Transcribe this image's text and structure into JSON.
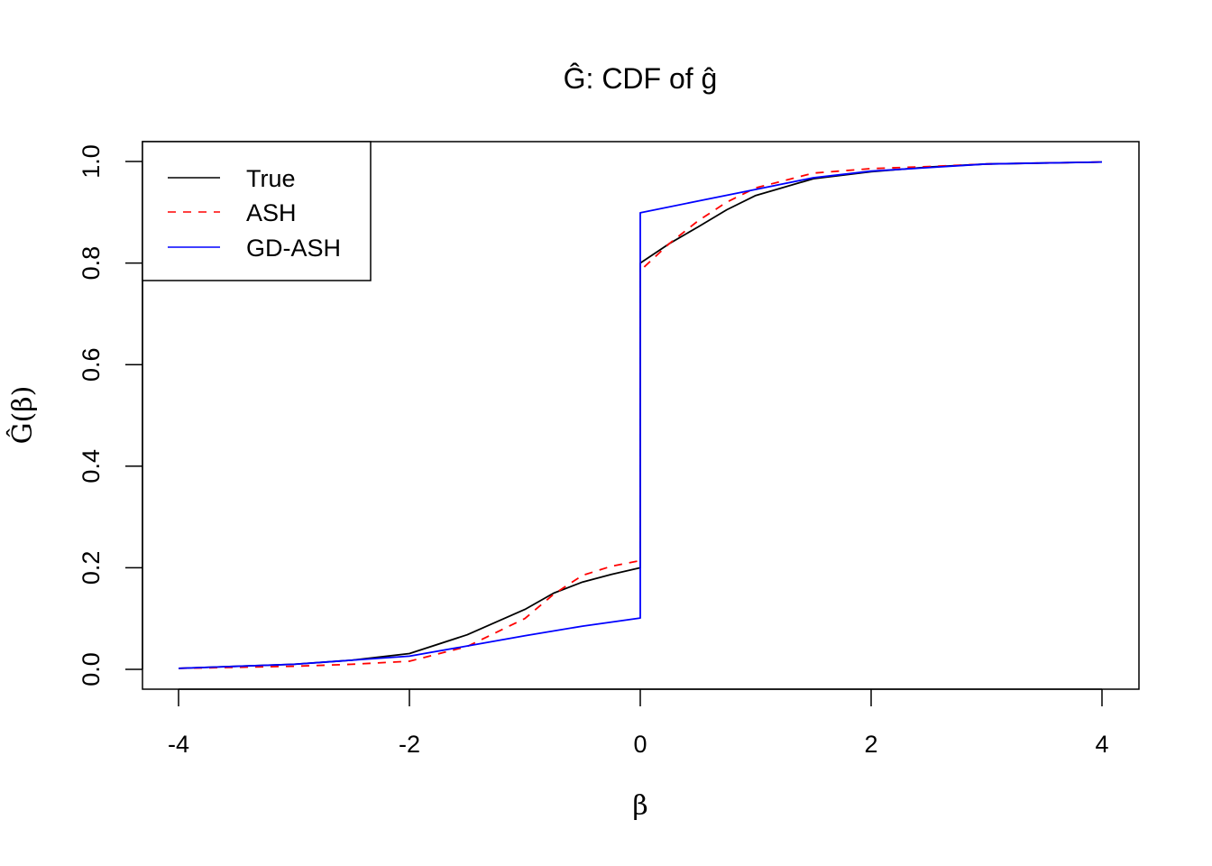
{
  "chart_data": {
    "type": "line",
    "title": "Ĝ: CDF of ĝ",
    "xlabel": "β",
    "ylabel": "Ĝ(β)",
    "xlim": [
      -4,
      4
    ],
    "ylim": [
      0,
      1
    ],
    "x_ticks": [
      "-4",
      "-2",
      "0",
      "2",
      "4"
    ],
    "y_ticks": [
      "0.0",
      "0.2",
      "0.4",
      "0.6",
      "0.8",
      "1.0"
    ],
    "grid": false,
    "legend_position": "top-left",
    "series": [
      {
        "name": "True",
        "color": "#000000",
        "dash": "solid",
        "x": [
          -4,
          -3,
          -2.5,
          -2,
          -1.5,
          -1,
          -0.75,
          -0.5,
          -0.25,
          0,
          0,
          0.25,
          0.5,
          0.75,
          1,
          1.5,
          2,
          2.5,
          3,
          4
        ],
        "y": [
          0.002,
          0.01,
          0.018,
          0.031,
          0.068,
          0.118,
          0.15,
          0.172,
          0.187,
          0.2,
          0.8,
          0.838,
          0.871,
          0.905,
          0.933,
          0.966,
          0.98,
          0.989,
          0.995,
          0.999
        ]
      },
      {
        "name": "ASH",
        "color": "#ff0000",
        "dash": "dashed",
        "x": [
          -4,
          -3,
          -2.5,
          -2,
          -1.5,
          -1,
          -0.75,
          -0.5,
          -0.25,
          0,
          0,
          0.25,
          0.5,
          0.75,
          1,
          1.5,
          2,
          2.5,
          3,
          4
        ],
        "y": [
          0.002,
          0.006,
          0.01,
          0.016,
          0.045,
          0.1,
          0.148,
          0.185,
          0.203,
          0.214,
          0.785,
          0.838,
          0.883,
          0.92,
          0.948,
          0.977,
          0.986,
          0.99,
          0.995,
          0.999
        ]
      },
      {
        "name": "GD-ASH",
        "color": "#0000ff",
        "dash": "solid",
        "x": [
          -4,
          -3,
          -2,
          -1.5,
          -1,
          -0.5,
          0,
          0,
          0.5,
          1,
          1.5,
          2,
          3,
          4
        ],
        "y": [
          0.002,
          0.01,
          0.026,
          0.046,
          0.066,
          0.085,
          0.101,
          0.899,
          0.922,
          0.945,
          0.968,
          0.981,
          0.995,
          0.999
        ]
      }
    ]
  }
}
